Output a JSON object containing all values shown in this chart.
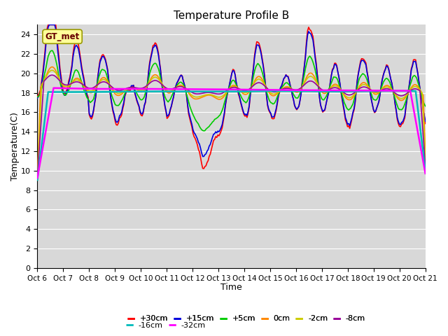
{
  "title": "Temperature Profile B",
  "xlabel": "Time",
  "ylabel": "Temperature(C)",
  "ylim": [
    0,
    25
  ],
  "yticks": [
    0,
    2,
    4,
    6,
    8,
    10,
    12,
    14,
    16,
    18,
    20,
    22,
    24
  ],
  "xtick_labels": [
    "Oct 6",
    "Oct 7",
    "Oct 8",
    "Oct 9",
    "Oct 10",
    "Oct 11",
    "Oct 12",
    "Oct 13",
    "Oct 14",
    "Oct 15",
    "Oct 16",
    "Oct 17",
    "Oct 18",
    "Oct 19",
    "Oct 20",
    "Oct 21"
  ],
  "plot_bg_color": "#d8d8d8",
  "fig_bg_color": "#ffffff",
  "grid_color": "#ffffff",
  "series": {
    "+30cm": {
      "color": "#ff0000",
      "lw": 1.2
    },
    "+15cm": {
      "color": "#0000dd",
      "lw": 1.2
    },
    "+5cm": {
      "color": "#00cc00",
      "lw": 1.2
    },
    "0cm": {
      "color": "#ff8800",
      "lw": 1.2
    },
    "-2cm": {
      "color": "#cccc00",
      "lw": 1.2
    },
    "-8cm": {
      "color": "#990099",
      "lw": 1.2
    },
    "-16cm": {
      "color": "#00bbbb",
      "lw": 1.8
    },
    "-32cm": {
      "color": "#ff00ff",
      "lw": 1.8
    }
  },
  "legend_label": "GT_met",
  "legend_box_color": "#ffff99",
  "legend_text_color": "#660000",
  "legend_edge_color": "#999900"
}
